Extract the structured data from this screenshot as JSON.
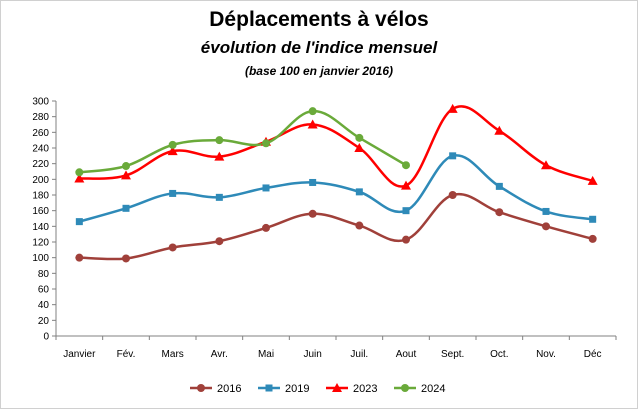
{
  "chart_data": {
    "type": "line",
    "title": "Déplacements à vélos",
    "subtitle": "évolution de l'indice mensuel",
    "note": "(base 100 en janvier 2016)",
    "xlabel": "",
    "ylabel": "",
    "ylim": [
      0,
      300
    ],
    "ytick_step": 20,
    "grid": false,
    "legend_position": "bottom",
    "categories": [
      "Janvier",
      "Fév.",
      "Mars",
      "Avr.",
      "Mai",
      "Juin",
      "Juil.",
      "Aout",
      "Sept.",
      "Oct.",
      "Nov.",
      "Déc"
    ],
    "series": [
      {
        "name": "2016",
        "color": "#a0403a",
        "marker": "circle",
        "values": [
          100,
          99,
          113,
          121,
          138,
          156,
          141,
          123,
          180,
          158,
          140,
          124
        ]
      },
      {
        "name": "2019",
        "color": "#2e8ab8",
        "marker": "square",
        "values": [
          146,
          163,
          182,
          177,
          189,
          196,
          184,
          160,
          230,
          191,
          159,
          149
        ]
      },
      {
        "name": "2023",
        "color": "#ff0000",
        "marker": "triangle",
        "values": [
          201,
          205,
          236,
          229,
          248,
          270,
          240,
          192,
          290,
          262,
          218,
          198
        ]
      },
      {
        "name": "2024",
        "color": "#6aaa3a",
        "marker": "circle",
        "values": [
          209,
          217,
          244,
          250,
          246,
          287,
          253,
          218,
          null,
          null,
          null,
          null
        ]
      }
    ]
  }
}
